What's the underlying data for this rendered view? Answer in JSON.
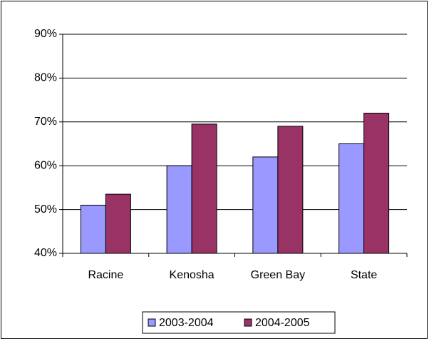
{
  "chart_data": {
    "type": "bar",
    "categories": [
      "Racine",
      "Kenosha",
      "Green Bay",
      "State"
    ],
    "series": [
      {
        "name": "2003-2004",
        "color": "#9999ff",
        "values": [
          51,
          60,
          62,
          65
        ]
      },
      {
        "name": "2004-2005",
        "color": "#993366",
        "values": [
          53.5,
          69.5,
          69,
          72
        ]
      }
    ],
    "ylim": [
      40,
      90
    ],
    "yticks": [
      {
        "value": 40,
        "label": "40%"
      },
      {
        "value": 50,
        "label": "50%"
      },
      {
        "value": 60,
        "label": "60%"
      },
      {
        "value": 70,
        "label": "70%"
      },
      {
        "value": 80,
        "label": "80%"
      },
      {
        "value": 90,
        "label": "90%"
      }
    ],
    "grid": true,
    "legend": "bottom"
  }
}
